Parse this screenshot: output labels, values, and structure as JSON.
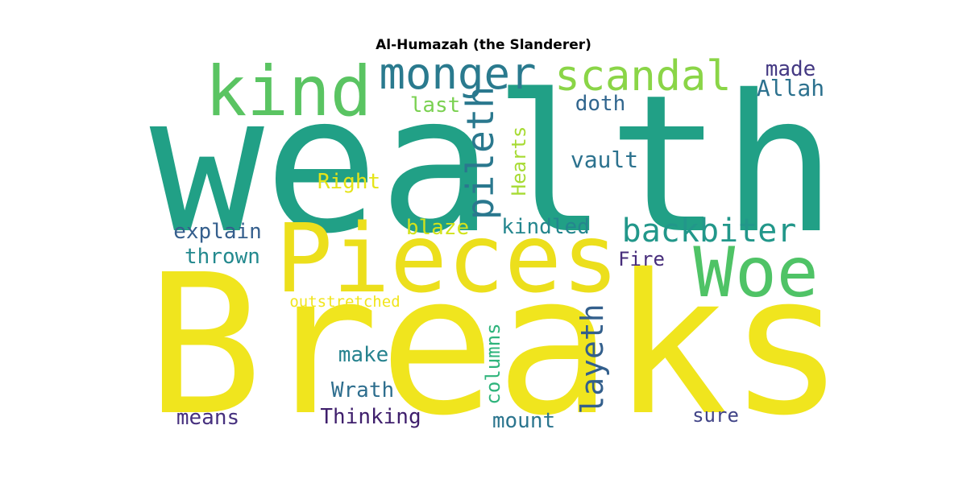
{
  "chart_data": {
    "type": "wordcloud",
    "title": "Al-Humazah (the Slanderer)",
    "words": [
      {
        "text": "wealth",
        "weight": 100,
        "color": "#21a086"
      },
      {
        "text": "Breaks",
        "weight": 98,
        "color": "#f0e51e"
      },
      {
        "text": "Pieces",
        "weight": 60,
        "color": "#ecdf1c"
      },
      {
        "text": "kind",
        "weight": 46,
        "color": "#5ac462"
      },
      {
        "text": "Woe",
        "weight": 44,
        "color": "#4fc366"
      },
      {
        "text": "monger",
        "weight": 28,
        "color": "#2a7a8e"
      },
      {
        "text": "scandal",
        "weight": 28,
        "color": "#8ad547"
      },
      {
        "text": "pileth",
        "weight": 24,
        "color": "#2a788e"
      },
      {
        "text": "backbiter",
        "weight": 20,
        "color": "#22978a"
      },
      {
        "text": "layeth",
        "weight": 20,
        "color": "#335f8c"
      },
      {
        "text": "Hearts",
        "weight": 12,
        "color": "#a7db33"
      },
      {
        "text": "columns",
        "weight": 12,
        "color": "#2fb47c"
      },
      {
        "text": "Allah",
        "weight": 12,
        "color": "#2c718e"
      },
      {
        "text": "made",
        "weight": 12,
        "color": "#443983"
      },
      {
        "text": "vault",
        "weight": 12,
        "color": "#2c728e"
      },
      {
        "text": "doth",
        "weight": 11,
        "color": "#31668e"
      },
      {
        "text": "last",
        "weight": 11,
        "color": "#7ad151"
      },
      {
        "text": "Right",
        "weight": 11,
        "color": "#e5e419"
      },
      {
        "text": "explain",
        "weight": 11,
        "color": "#355f8d"
      },
      {
        "text": "thrown",
        "weight": 11,
        "color": "#23898e"
      },
      {
        "text": "blaze",
        "weight": 11,
        "color": "#d2e21b"
      },
      {
        "text": "kindled",
        "weight": 11,
        "color": "#24868e"
      },
      {
        "text": "Fire",
        "weight": 10,
        "color": "#472d7b"
      },
      {
        "text": "make",
        "weight": 11,
        "color": "#26828e"
      },
      {
        "text": "Wrath",
        "weight": 11,
        "color": "#2e6e8e"
      },
      {
        "text": "means",
        "weight": 11,
        "color": "#46307e"
      },
      {
        "text": "Thinking",
        "weight": 11,
        "color": "#3f1f6c"
      },
      {
        "text": "mount",
        "weight": 11,
        "color": "#2b758e"
      },
      {
        "text": "sure",
        "weight": 11,
        "color": "#414487"
      },
      {
        "text": "outstretched",
        "weight": 8,
        "color": "#f1e51d"
      }
    ]
  }
}
